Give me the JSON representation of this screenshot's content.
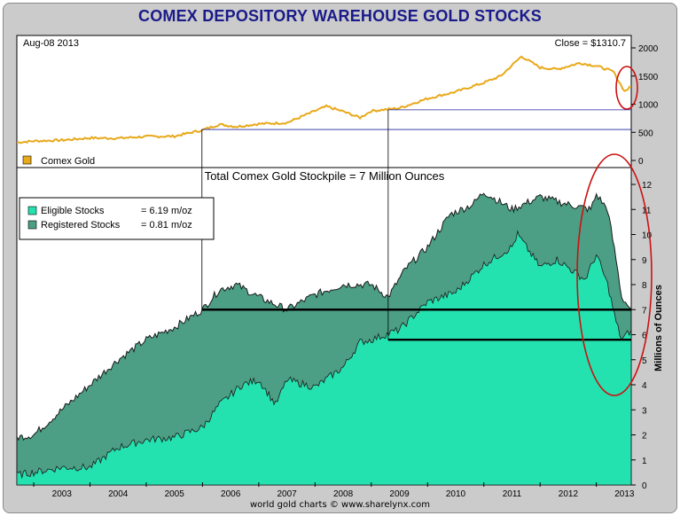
{
  "title": "COMEX DEPOSITORY WAREHOUSE GOLD STOCKS",
  "footer": "world gold charts © www.sharelynx.com",
  "colors": {
    "gold_line": "#e8a91a",
    "eligible": "#23e2b0",
    "registered": "#4c9e84",
    "annotation": "#cc1111",
    "ref_line": "#2020a0"
  },
  "chart_data": [
    {
      "type": "line",
      "date_label": "Aug-08  2013",
      "close_label": "Close = $1310.7",
      "legend": [
        "Comex Gold"
      ],
      "yticks": [
        "2000",
        "1500",
        "1000",
        "500",
        "0"
      ],
      "ylim": [
        0,
        2000
      ],
      "xlim": [
        2002.7,
        2013.62
      ],
      "series": [
        {
          "name": "Comex Gold",
          "points": [
            [
              2002.7,
              320
            ],
            [
              2003.0,
              345
            ],
            [
              2003.5,
              360
            ],
            [
              2004.0,
              400
            ],
            [
              2004.5,
              395
            ],
            [
              2005.0,
              425
            ],
            [
              2005.5,
              430
            ],
            [
              2006.0,
              540
            ],
            [
              2006.3,
              640
            ],
            [
              2006.6,
              600
            ],
            [
              2007.0,
              650
            ],
            [
              2007.5,
              670
            ],
            [
              2008.0,
              880
            ],
            [
              2008.2,
              960
            ],
            [
              2008.5,
              870
            ],
            [
              2008.8,
              760
            ],
            [
              2009.0,
              880
            ],
            [
              2009.5,
              930
            ],
            [
              2010.0,
              1100
            ],
            [
              2010.5,
              1220
            ],
            [
              2011.0,
              1380
            ],
            [
              2011.3,
              1500
            ],
            [
              2011.67,
              1850
            ],
            [
              2012.0,
              1650
            ],
            [
              2012.3,
              1620
            ],
            [
              2012.7,
              1730
            ],
            [
              2013.0,
              1680
            ],
            [
              2013.3,
              1580
            ],
            [
              2013.5,
              1230
            ],
            [
              2013.62,
              1310
            ]
          ]
        }
      ]
    },
    {
      "type": "area",
      "subtitle": "Total Comex Gold Stockpile = 7 Million Ounces",
      "ylabel": "Millions of Ounces",
      "yticks": [
        "12",
        "11",
        "10",
        "9",
        "8",
        "7",
        "6",
        "5",
        "4",
        "3",
        "2",
        "1",
        "0"
      ],
      "ylim": [
        0,
        12
      ],
      "xlim": [
        2002.7,
        2013.62
      ],
      "xticks": [
        "2003",
        "2004",
        "2005",
        "2006",
        "2007",
        "2008",
        "2009",
        "2010",
        "2011",
        "2012",
        "2013"
      ],
      "legend": [
        {
          "label": "Eligible Stocks",
          "value": "= 6.19 m/oz"
        },
        {
          "label": "Registered Stocks",
          "value": "= 0.81 m/oz"
        }
      ],
      "series": [
        {
          "name": "Total Stocks",
          "points": [
            [
              2002.7,
              1.9
            ],
            [
              2003.0,
              2.0
            ],
            [
              2003.5,
              3.0
            ],
            [
              2004.0,
              4.0
            ],
            [
              2004.5,
              5.0
            ],
            [
              2005.0,
              5.8
            ],
            [
              2005.5,
              6.3
            ],
            [
              2006.0,
              7.0
            ],
            [
              2006.3,
              7.8
            ],
            [
              2006.6,
              8.0
            ],
            [
              2007.0,
              7.5
            ],
            [
              2007.5,
              7.0
            ],
            [
              2008.0,
              7.6
            ],
            [
              2008.5,
              8.0
            ],
            [
              2009.0,
              8.0
            ],
            [
              2009.3,
              7.5
            ],
            [
              2009.6,
              8.6
            ],
            [
              2010.0,
              9.5
            ],
            [
              2010.4,
              10.8
            ],
            [
              2010.8,
              11.2
            ],
            [
              2011.0,
              11.7
            ],
            [
              2011.5,
              11.0
            ],
            [
              2012.0,
              11.5
            ],
            [
              2012.5,
              11.2
            ],
            [
              2012.9,
              11.0
            ],
            [
              2013.0,
              11.6
            ],
            [
              2013.2,
              11.0
            ],
            [
              2013.35,
              9.0
            ],
            [
              2013.45,
              7.5
            ],
            [
              2013.62,
              7.0
            ]
          ]
        },
        {
          "name": "Eligible Stocks",
          "points": [
            [
              2002.7,
              0.4
            ],
            [
              2003.0,
              0.5
            ],
            [
              2003.5,
              0.7
            ],
            [
              2004.0,
              0.7
            ],
            [
              2004.5,
              1.5
            ],
            [
              2005.0,
              1.8
            ],
            [
              2005.5,
              1.9
            ],
            [
              2006.0,
              2.3
            ],
            [
              2006.3,
              3.2
            ],
            [
              2006.7,
              4.0
            ],
            [
              2007.0,
              4.2
            ],
            [
              2007.3,
              3.2
            ],
            [
              2007.5,
              4.2
            ],
            [
              2008.0,
              3.9
            ],
            [
              2008.5,
              4.7
            ],
            [
              2008.8,
              5.7
            ],
            [
              2009.0,
              5.8
            ],
            [
              2009.5,
              6.2
            ],
            [
              2010.0,
              7.3
            ],
            [
              2010.5,
              7.7
            ],
            [
              2011.0,
              8.8
            ],
            [
              2011.5,
              9.5
            ],
            [
              2011.6,
              10.0
            ],
            [
              2012.0,
              8.7
            ],
            [
              2012.3,
              9.0
            ],
            [
              2012.8,
              8.2
            ],
            [
              2013.0,
              9.2
            ],
            [
              2013.2,
              8.0
            ],
            [
              2013.35,
              6.5
            ],
            [
              2013.45,
              5.8
            ],
            [
              2013.62,
              6.19
            ]
          ]
        }
      ],
      "reference_levels": [
        7.0,
        5.8
      ]
    }
  ]
}
